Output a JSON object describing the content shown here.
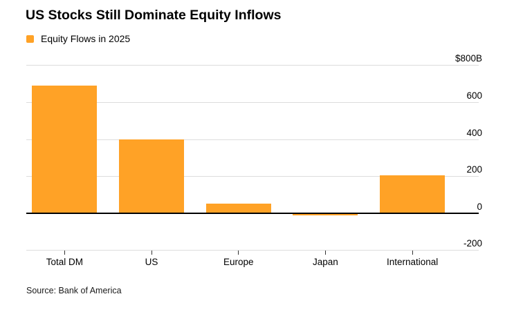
{
  "header": {
    "title": "US Stocks Still Dominate Equity Inflows"
  },
  "legend": {
    "label": "Equity Flows in 2025",
    "swatch_color": "#FFA226"
  },
  "chart_data": {
    "type": "bar",
    "title": "US Stocks Still Dominate Equity Inflows",
    "legend_entries": [
      "Equity Flows in 2025"
    ],
    "categories": [
      "Total DM",
      "US",
      "Europe",
      "Japan",
      "International"
    ],
    "values": [
      690,
      400,
      55,
      -10,
      205
    ],
    "unit": "$B",
    "bar_color": "#FFA226",
    "ylim": [
      -200,
      800
    ],
    "yticks": [
      {
        "value": 800,
        "label": "$800B"
      },
      {
        "value": 600,
        "label": "600"
      },
      {
        "value": 400,
        "label": "400"
      },
      {
        "value": 200,
        "label": "200"
      },
      {
        "value": 0,
        "label": "0"
      },
      {
        "value": -200,
        "label": "-200"
      }
    ],
    "grid": "horizontal",
    "y_axis_position": "right",
    "legend_position": "top-left"
  },
  "footer": {
    "source": "Source: Bank of America"
  }
}
